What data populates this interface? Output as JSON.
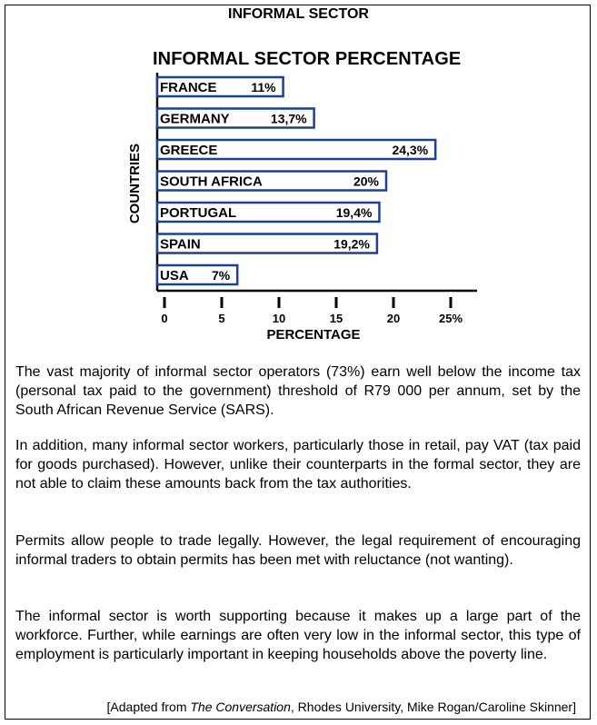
{
  "header": {
    "title": "INFORMAL SECTOR"
  },
  "chart_data": {
    "type": "bar",
    "orientation": "horizontal",
    "title": "INFORMAL SECTOR PERCENTAGE",
    "xlabel": "PERCENTAGE",
    "ylabel": "COUNTRIES",
    "categories": [
      "FRANCE",
      "GERMANY",
      "GREECE",
      "SOUTH AFRICA",
      "PORTUGAL",
      "SPAIN",
      "USA"
    ],
    "values": [
      11,
      13.7,
      24.3,
      20,
      19.4,
      19.2,
      7
    ],
    "value_labels": [
      "11%",
      "13,7%",
      "24,3%",
      "20%",
      "19,4%",
      "19,2%",
      "7%"
    ],
    "xlim": [
      0,
      25
    ],
    "xticks": [
      "0",
      "5",
      "10",
      "15",
      "20",
      "25%"
    ],
    "bar_border_color": "#1f3f8f",
    "grid": false,
    "legend": "none"
  },
  "paragraphs": [
    "The vast majority of informal sector operators (73%) earn well below the income tax (personal tax paid to the government) threshold of R79 000 per annum, set by the South African Revenue Service (SARS).",
    "In addition, many informal sector workers, particularly those in retail, pay VAT (tax paid for goods purchased). However, unlike their counterparts in the formal sector, they are not able to claim these amounts back from the tax authorities.",
    "Permits allow people to trade legally. However, the legal requirement of encouraging informal traders to obtain permits has been met with reluctance (not wanting).",
    "The informal sector is worth supporting because it makes up a large part of the workforce. Further, while earnings are often very low in the informal sector, this type of employment is particularly important in keeping households above the poverty line."
  ],
  "source": {
    "prefix": "[Adapted from ",
    "publication": "The Conversation",
    "suffix": ", Rhodes University, Mike Rogan/Caroline Skinner]"
  }
}
